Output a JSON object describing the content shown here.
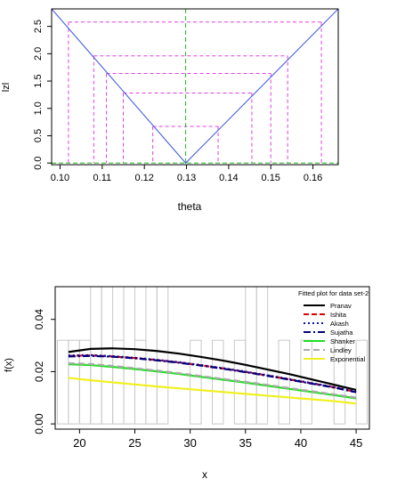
{
  "colors": {
    "v_curve": "#4a5fe0",
    "guides": "#e040e0",
    "reference": "#22b822",
    "frame": "#000000",
    "histogram": "#c8c8c8"
  },
  "chart_data": [
    {
      "type": "line",
      "xlabel": "theta",
      "ylabel": "lzl",
      "xlim": [
        0.098,
        0.166
      ],
      "ylim": [
        -0.03,
        2.82
      ],
      "x_ticks": [
        "0.10",
        "0.11",
        "0.12",
        "0.13",
        "0.14",
        "0.15",
        "0.16"
      ],
      "x_tick_values": [
        0.1,
        0.11,
        0.12,
        0.13,
        0.14,
        0.15,
        0.16
      ],
      "y_ticks": [
        "0.0",
        "0.5",
        "1.0",
        "1.5",
        "2.0",
        "2.5"
      ],
      "y_tick_values": [
        0.0,
        0.5,
        1.0,
        1.5,
        2.0,
        2.5
      ],
      "series": [
        {
          "values_x": [
            0.098,
            0.1298,
            0.166
          ],
          "values_y": [
            2.82,
            0.0,
            2.82
          ]
        }
      ],
      "vertical_reference": 0.1298,
      "horizontal_reference": 0.0,
      "guide_levels": [
        {
          "z": 2.58,
          "x_left": 0.102,
          "x_right": 0.162
        },
        {
          "z": 1.96,
          "x_left": 0.108,
          "x_right": 0.154
        },
        {
          "z": 1.64,
          "x_left": 0.111,
          "x_right": 0.15
        },
        {
          "z": 1.28,
          "x_left": 0.115,
          "x_right": 0.1455
        },
        {
          "z": 0.67,
          "x_left": 0.122,
          "x_right": 0.1375
        }
      ]
    },
    {
      "type": "line",
      "xlabel": "x",
      "ylabel": "f(x)",
      "xlim": [
        17.8,
        46.2
      ],
      "ylim": [
        -0.002,
        0.0525
      ],
      "x_ticks": [
        "20",
        "25",
        "30",
        "35",
        "40",
        "45"
      ],
      "x_tick_values": [
        20,
        25,
        30,
        35,
        40,
        45
      ],
      "y_ticks": [
        "0.00",
        "0.02",
        "0.04"
      ],
      "y_tick_values": [
        0.0,
        0.02,
        0.04
      ],
      "legend_title": "Fitted plot for data set-2",
      "legend_position": "top-right",
      "histogram": {
        "edges": [
          18,
          19,
          20,
          21,
          22,
          23,
          24,
          25,
          26,
          27,
          28,
          29,
          30,
          31,
          32,
          33,
          34,
          35,
          36,
          37,
          38,
          39,
          40,
          41,
          42,
          43,
          44,
          45,
          46
        ],
        "heights": [
          0.032,
          0.032,
          0.032,
          0.064,
          0.064,
          0.032,
          0.064,
          0.032,
          0.064,
          0.064,
          0.0,
          0.0,
          0.032,
          0.0,
          0.032,
          0.0,
          0.032,
          0.064,
          0.064,
          0.0,
          0.032,
          0.0,
          0.032,
          0.0,
          0.0,
          0.032,
          0.0,
          0.032
        ]
      },
      "series": [
        {
          "name": "Pranav",
          "color": "#000000",
          "dash": "solid",
          "width": 2.2,
          "x": [
            19,
            21,
            23,
            25,
            27,
            29,
            31,
            33,
            35,
            37,
            39,
            41,
            43,
            45
          ],
          "y": [
            0.0275,
            0.0287,
            0.0289,
            0.0286,
            0.0279,
            0.0269,
            0.0256,
            0.0242,
            0.0226,
            0.0208,
            0.019,
            0.017,
            0.015,
            0.013
          ]
        },
        {
          "name": "Ishita",
          "color": "#e00000",
          "dash": "6 3",
          "width": 2.2,
          "x": [
            19,
            21,
            23,
            25,
            27,
            29,
            31,
            33,
            35,
            37,
            39,
            41,
            43,
            45
          ],
          "y": [
            0.026,
            0.0262,
            0.0258,
            0.0252,
            0.0244,
            0.0235,
            0.0224,
            0.0212,
            0.0199,
            0.0185,
            0.017,
            0.0155,
            0.014,
            0.0122
          ]
        },
        {
          "name": "Akash",
          "color": "#1010b0",
          "dash": "2 3",
          "width": 2.2,
          "x": [
            19,
            21,
            23,
            25,
            27,
            29,
            31,
            33,
            35,
            37,
            39,
            41,
            43,
            45
          ],
          "y": [
            0.0262,
            0.0263,
            0.0259,
            0.0253,
            0.0245,
            0.0236,
            0.0225,
            0.0213,
            0.02,
            0.0186,
            0.0171,
            0.0156,
            0.0141,
            0.0123
          ]
        },
        {
          "name": "Sujatha",
          "color": "#00007a",
          "dash": "8 3 2 3",
          "width": 2.2,
          "x": [
            19,
            21,
            23,
            25,
            27,
            29,
            31,
            33,
            35,
            37,
            39,
            41,
            43,
            45
          ],
          "y": [
            0.0258,
            0.026,
            0.0257,
            0.0251,
            0.0243,
            0.0234,
            0.0223,
            0.0211,
            0.0198,
            0.0184,
            0.0169,
            0.0154,
            0.0139,
            0.0121
          ]
        },
        {
          "name": "Shanker",
          "color": "#22dd22",
          "dash": "solid",
          "width": 2.2,
          "x": [
            19,
            21,
            23,
            25,
            27,
            29,
            31,
            33,
            35,
            37,
            39,
            41,
            43,
            45
          ],
          "y": [
            0.0228,
            0.0225,
            0.0218,
            0.021,
            0.0201,
            0.0191,
            0.018,
            0.0169,
            0.0158,
            0.0146,
            0.0134,
            0.0122,
            0.011,
            0.0098
          ]
        },
        {
          "name": "Lindley",
          "color": "#aaaaaa",
          "dash": "7 4",
          "width": 2.2,
          "x": [
            19,
            21,
            23,
            25,
            27,
            29,
            31,
            33,
            35,
            37,
            39,
            41,
            43,
            45
          ],
          "y": [
            0.0232,
            0.0229,
            0.0222,
            0.0213,
            0.0204,
            0.0194,
            0.0183,
            0.0172,
            0.0161,
            0.0149,
            0.0137,
            0.0125,
            0.0113,
            0.0101
          ]
        },
        {
          "name": "Exponential",
          "color": "#f0f020",
          "dash": "solid",
          "width": 2.2,
          "x": [
            19,
            21,
            23,
            25,
            27,
            29,
            31,
            33,
            35,
            37,
            39,
            41,
            43,
            45
          ],
          "y": [
            0.0176,
            0.0167,
            0.0159,
            0.0151,
            0.0143,
            0.0136,
            0.0129,
            0.0122,
            0.0115,
            0.0108,
            0.0101,
            0.0094,
            0.0087,
            0.0078
          ]
        }
      ]
    }
  ]
}
